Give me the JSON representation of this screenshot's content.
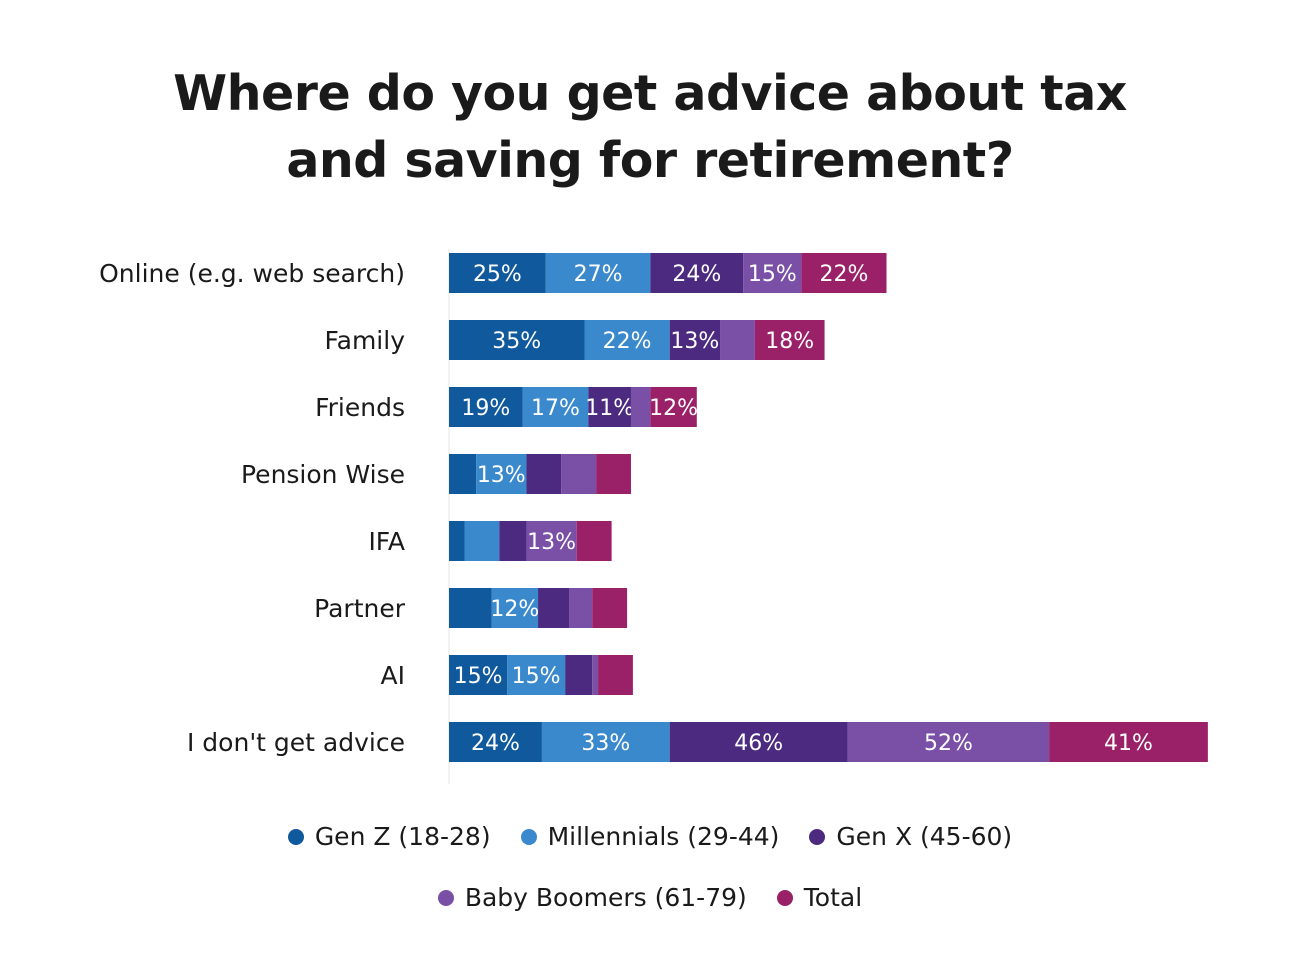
{
  "chart_data": {
    "type": "bar",
    "orientation": "horizontal",
    "stacked": true,
    "title_lines": [
      "Where do you get advice about tax",
      "and saving for retirement?"
    ],
    "categories": [
      "Online (e.g. web search)",
      "Family",
      "Friends",
      "Pension Wise",
      "IFA",
      "Partner",
      "AI",
      "I don't get advice"
    ],
    "series": [
      {
        "name": "Gen Z (18-28)",
        "color": "#10599c",
        "values": [
          25,
          35,
          19,
          7,
          4,
          11,
          15,
          24
        ],
        "labels": [
          "25%",
          "35%",
          "19%",
          "",
          "",
          "",
          "15%",
          "24%"
        ]
      },
      {
        "name": "Millennials (29-44)",
        "color": "#3a89cc",
        "values": [
          27,
          22,
          17,
          13,
          9,
          12,
          15,
          33
        ],
        "labels": [
          "27%",
          "22%",
          "17%",
          "13%",
          "",
          "12%",
          "15%",
          "33%"
        ]
      },
      {
        "name": "Gen X (45-60)",
        "color": "#4b2a80",
        "values": [
          24,
          13,
          11,
          9,
          7,
          8,
          7,
          46
        ],
        "labels": [
          "24%",
          "13%",
          "11%",
          "",
          "",
          "",
          "",
          "46%"
        ]
      },
      {
        "name": "Baby Boomers (61-79)",
        "color": "#7a4fa6",
        "values": [
          15,
          9,
          5,
          9,
          13,
          6,
          1.5,
          52
        ],
        "labels": [
          "15%",
          "",
          "",
          "",
          "13%",
          "",
          "",
          "52%"
        ]
      },
      {
        "name": "Total",
        "color": "#9a2068",
        "values": [
          22,
          18,
          12,
          9,
          9,
          9,
          9,
          41
        ],
        "labels": [
          "22%",
          "18%",
          "12%",
          "",
          "",
          "",
          "",
          "41%"
        ]
      }
    ],
    "xlim": [
      0,
      195
    ],
    "grid": false,
    "legend_position": "bottom"
  },
  "legend": {
    "row1": [
      "Gen Z (18-28)",
      "Millennials (29-44)",
      "Gen X (45-60)"
    ],
    "row2": [
      "Baby Boomers (61-79)",
      "Total"
    ]
  }
}
